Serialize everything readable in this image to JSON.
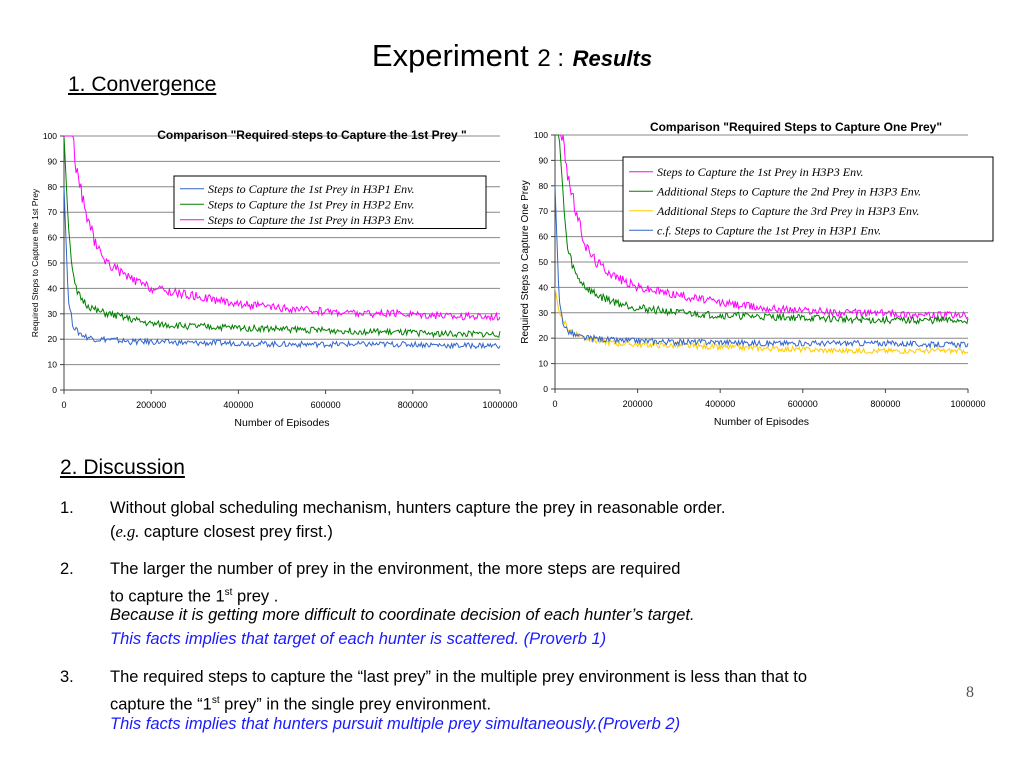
{
  "slide": {
    "title_part1": "Experiment",
    "title_part2": "2 :",
    "title_part3": "Results",
    "section1": "1. Convergence",
    "section2": "2. Discussion",
    "page_number": "8"
  },
  "chart_data": [
    {
      "type": "line",
      "title": "Comparison \"Required steps to Capture the 1st Prey \"",
      "xlabel": "Number of Episodes",
      "ylabel": "Required Steps to Capture the 1st Prey",
      "xlim": [
        0,
        1000000
      ],
      "ylim": [
        0,
        100
      ],
      "xticks": [
        "0",
        "200000",
        "400000",
        "600000",
        "800000",
        "1000000"
      ],
      "yticks": [
        "0",
        "10",
        "20",
        "30",
        "40",
        "50",
        "60",
        "70",
        "80",
        "90",
        "100"
      ],
      "grid": "horizontal",
      "legend_position": "top-right",
      "x": [
        0,
        10000,
        20000,
        30000,
        50000,
        75000,
        100000,
        150000,
        200000,
        300000,
        400000,
        500000,
        600000,
        700000,
        800000,
        900000,
        1000000
      ],
      "series": [
        {
          "name": "Steps to Capture the 1st Prey in H3P1 Env.",
          "color": "#3366cc",
          "values": [
            80,
            35,
            26,
            23,
            21,
            20,
            20,
            19,
            19,
            18.5,
            18.5,
            18,
            18,
            18,
            18,
            17.5,
            17.5
          ]
        },
        {
          "name": "Steps to Capture the 1st Prey in H3P2 Env.",
          "color": "#008000",
          "values": [
            100,
            65,
            45,
            38,
            34,
            31,
            30,
            28,
            26,
            25,
            24.5,
            24,
            23.5,
            23,
            22.5,
            22,
            22
          ]
        },
        {
          "name": "Steps to Capture the 1st Prey in H3P3 Env.",
          "color": "#ff00ff",
          "values": [
            100,
            100,
            100,
            85,
            70,
            56,
            50,
            44,
            40,
            37,
            34,
            32,
            31,
            30,
            30,
            29,
            29
          ]
        }
      ]
    },
    {
      "type": "line",
      "title": "Comparison \"Required Steps to Capture One Prey\"",
      "xlabel": "Number of Episodes",
      "ylabel": "Required Steps to Capture One Prey",
      "xlim": [
        0,
        1000000
      ],
      "ylim": [
        0,
        100
      ],
      "xticks": [
        "0",
        "200000",
        "400000",
        "600000",
        "800000",
        "1000000"
      ],
      "yticks": [
        "0",
        "10",
        "20",
        "30",
        "40",
        "50",
        "60",
        "70",
        "80",
        "90",
        "100"
      ],
      "grid": "horizontal",
      "legend_position": "top-right",
      "x": [
        0,
        10000,
        20000,
        30000,
        50000,
        75000,
        100000,
        150000,
        200000,
        300000,
        400000,
        500000,
        600000,
        700000,
        800000,
        900000,
        1000000
      ],
      "series": [
        {
          "name": "Steps to Capture the 1st Prey in H3P3 Env.",
          "color": "#ff00ff",
          "values": [
            100,
            100,
            100,
            85,
            70,
            56,
            50,
            44,
            40,
            37,
            34,
            32,
            31,
            30,
            30,
            29,
            29
          ]
        },
        {
          "name": "Additional Steps to Capture the 2nd Prey in H3P3 Env.",
          "color": "#008000",
          "values": [
            100,
            100,
            75,
            55,
            45,
            40,
            37,
            34,
            32,
            30,
            29,
            28.5,
            28,
            27.5,
            27,
            27,
            27
          ]
        },
        {
          "name": "Additional Steps to Capture the 3rd Prey in H3P3 Env.",
          "color": "#ffcc00",
          "values": [
            40,
            30,
            27,
            24,
            22,
            20,
            19,
            18,
            17.5,
            17,
            16.5,
            16,
            15.5,
            15,
            15,
            15,
            15
          ]
        },
        {
          "name": "c.f. Steps to Capture the 1st Prey in H3P1 Env.",
          "color": "#3366cc",
          "values": [
            80,
            35,
            26,
            23,
            21,
            20,
            20,
            19,
            19,
            18.5,
            18.5,
            18,
            18,
            18,
            18,
            17.5,
            17.5
          ]
        }
      ]
    }
  ],
  "discussion": {
    "items": [
      {
        "num": "1.",
        "line1": "Without global scheduling mechanism,  hunters capture the prey in reasonable order.",
        "line2_prefix": "(",
        "line2_eg": "e.g.",
        "line2_rest": " capture closest prey first.)"
      },
      {
        "num": "2.",
        "line1": "The larger  the number of prey  in the environment, the more steps are required",
        "line2_a": " to capture the 1",
        "line2_sup": "st",
        "line2_b": " prey .",
        "line3": "Because it is getting more difficult to coordinate decision of each hunter’s target.",
        "line4": "This facts implies that target of each hunter is scattered. (Proverb 1)"
      },
      {
        "num": "3.",
        "line1": "The required steps to capture the “last prey” in the multiple prey environment is less than that to",
        "line2_a": "capture the “1",
        "line2_sup": "st",
        "line2_b": "  prey” in the single prey environment.",
        "line3": "This facts implies that hunters pursuit multiple prey simultaneously.(Proverb 2)"
      }
    ]
  }
}
